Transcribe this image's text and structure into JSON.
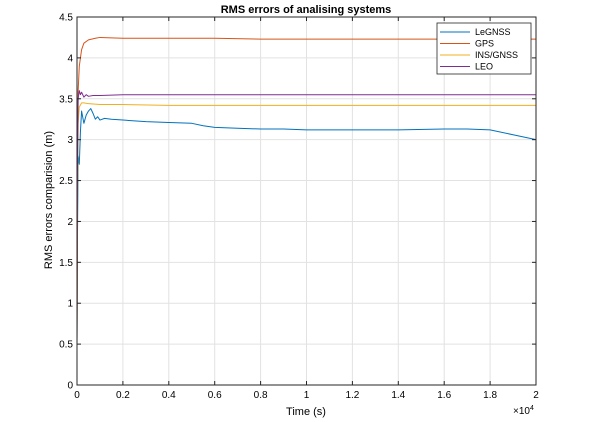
{
  "chart_data": {
    "type": "line",
    "title": "RMS errors of analising systems",
    "xlabel": "Time (s)",
    "ylabel": "RMS errors comparision (m)",
    "xlim": [
      0,
      20000
    ],
    "ylim": [
      0,
      4.5
    ],
    "grid": true,
    "legend_position": "top-right",
    "x_ticks": [
      0,
      2000,
      4000,
      6000,
      8000,
      10000,
      12000,
      14000,
      16000,
      18000,
      20000
    ],
    "x_tick_labels": [
      "0",
      "0.2",
      "0.4",
      "0.6",
      "0.8",
      "1",
      "1.2",
      "1.4",
      "1.6",
      "1.8",
      "2"
    ],
    "x_exponent_label": "×10",
    "x_exponent_power": "4",
    "y_ticks": [
      0,
      0.5,
      1,
      1.5,
      2,
      2.5,
      3,
      3.5,
      4,
      4.5
    ],
    "y_tick_labels": [
      "0",
      "0.5",
      "1",
      "1.5",
      "2",
      "2.5",
      "3",
      "3.5",
      "4",
      "4.5"
    ],
    "series": [
      {
        "name": "LeGNSS",
        "color": "#0072BD",
        "points": [
          [
            0,
            0.5
          ],
          [
            20,
            1.8
          ],
          [
            50,
            2.8
          ],
          [
            100,
            2.7
          ],
          [
            150,
            3.1
          ],
          [
            200,
            3.35
          ],
          [
            300,
            3.2
          ],
          [
            400,
            3.3
          ],
          [
            500,
            3.35
          ],
          [
            600,
            3.38
          ],
          [
            700,
            3.32
          ],
          [
            800,
            3.25
          ],
          [
            900,
            3.28
          ],
          [
            1000,
            3.24
          ],
          [
            1200,
            3.26
          ],
          [
            1500,
            3.25
          ],
          [
            2000,
            3.24
          ],
          [
            2500,
            3.23
          ],
          [
            3000,
            3.22
          ],
          [
            4000,
            3.21
          ],
          [
            5000,
            3.2
          ],
          [
            5500,
            3.17
          ],
          [
            6000,
            3.15
          ],
          [
            7000,
            3.14
          ],
          [
            8000,
            3.13
          ],
          [
            9000,
            3.13
          ],
          [
            10000,
            3.12
          ],
          [
            12000,
            3.12
          ],
          [
            14000,
            3.12
          ],
          [
            16000,
            3.13
          ],
          [
            17000,
            3.13
          ],
          [
            18000,
            3.12
          ],
          [
            19000,
            3.06
          ],
          [
            20000,
            3.0
          ]
        ]
      },
      {
        "name": "GPS",
        "color": "#D95319",
        "points": [
          [
            0,
            0.5
          ],
          [
            20,
            2.5
          ],
          [
            50,
            3.6
          ],
          [
            100,
            3.9
          ],
          [
            200,
            4.1
          ],
          [
            300,
            4.18
          ],
          [
            500,
            4.22
          ],
          [
            800,
            4.24
          ],
          [
            1000,
            4.25
          ],
          [
            2000,
            4.24
          ],
          [
            4000,
            4.24
          ],
          [
            6000,
            4.24
          ],
          [
            8000,
            4.23
          ],
          [
            10000,
            4.23
          ],
          [
            12000,
            4.23
          ],
          [
            14000,
            4.23
          ],
          [
            16000,
            4.23
          ],
          [
            18000,
            4.23
          ],
          [
            20000,
            4.23
          ]
        ]
      },
      {
        "name": "INS/GNSS",
        "color": "#EDB120",
        "points": [
          [
            0,
            0.5
          ],
          [
            20,
            2.2
          ],
          [
            50,
            3.2
          ],
          [
            100,
            3.4
          ],
          [
            200,
            3.45
          ],
          [
            300,
            3.45
          ],
          [
            500,
            3.44
          ],
          [
            1000,
            3.43
          ],
          [
            2000,
            3.43
          ],
          [
            4000,
            3.42
          ],
          [
            6000,
            3.42
          ],
          [
            8000,
            3.42
          ],
          [
            10000,
            3.42
          ],
          [
            12000,
            3.42
          ],
          [
            14000,
            3.42
          ],
          [
            16000,
            3.42
          ],
          [
            18000,
            3.42
          ],
          [
            20000,
            3.42
          ]
        ]
      },
      {
        "name": "LEO",
        "color": "#7E2F8E",
        "points": [
          [
            0,
            0.5
          ],
          [
            20,
            2.6
          ],
          [
            50,
            3.5
          ],
          [
            100,
            3.6
          ],
          [
            150,
            3.55
          ],
          [
            200,
            3.58
          ],
          [
            300,
            3.52
          ],
          [
            400,
            3.55
          ],
          [
            500,
            3.53
          ],
          [
            700,
            3.54
          ],
          [
            1000,
            3.54
          ],
          [
            2000,
            3.55
          ],
          [
            4000,
            3.55
          ],
          [
            6000,
            3.55
          ],
          [
            8000,
            3.55
          ],
          [
            10000,
            3.55
          ],
          [
            12000,
            3.55
          ],
          [
            14000,
            3.55
          ],
          [
            16000,
            3.55
          ],
          [
            18000,
            3.55
          ],
          [
            20000,
            3.55
          ]
        ]
      }
    ]
  }
}
